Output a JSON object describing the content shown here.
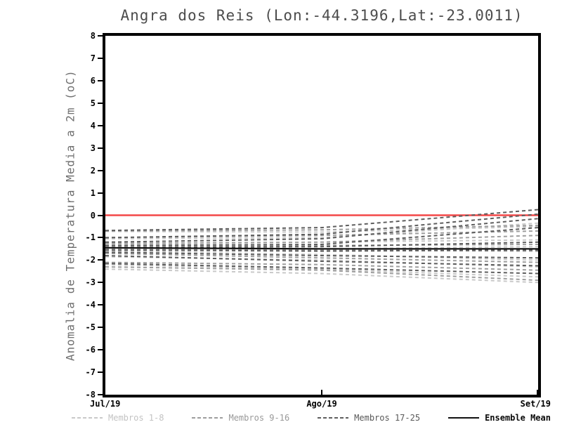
{
  "chart_data": {
    "type": "line",
    "title": "Angra dos Reis (Lon:-44.3196,Lat:-23.0011)",
    "ylabel": "Anomalia de Temperatura Media a 2m (oC)",
    "xlabel": "",
    "x_categories": [
      "Jul/19",
      "Ago/19",
      "Set/19"
    ],
    "ylim": [
      -8,
      8
    ],
    "ytick_step": 1,
    "grid": false,
    "legend_position": "bottom",
    "zero_line": {
      "value": 0,
      "color": "#f44848"
    },
    "series_groups": [
      {
        "name": "Membros 1-8",
        "color": "#c9c9c9",
        "style": "dashed",
        "members": [
          [
            -0.72,
            -0.75,
            -0.5
          ],
          [
            -1.05,
            -1.0,
            -0.35
          ],
          [
            -1.3,
            -1.2,
            -1.1
          ],
          [
            -1.45,
            -1.5,
            -1.4
          ],
          [
            -1.6,
            -1.75,
            -2.0
          ],
          [
            -1.85,
            -2.0,
            -2.3
          ],
          [
            -2.2,
            -2.4,
            -2.75
          ],
          [
            -2.4,
            -2.6,
            -3.0
          ]
        ]
      },
      {
        "name": "Membros 9-16",
        "color": "#9e9e9e",
        "style": "dashed",
        "members": [
          [
            -0.7,
            -0.65,
            -0.45
          ],
          [
            -1.0,
            -0.9,
            -0.7
          ],
          [
            -1.25,
            -1.2,
            -0.9
          ],
          [
            -1.4,
            -1.35,
            -1.3
          ],
          [
            -1.5,
            -1.55,
            -1.6
          ],
          [
            -1.7,
            -1.9,
            -2.1
          ],
          [
            -2.1,
            -2.2,
            -2.45
          ],
          [
            -2.3,
            -2.45,
            -2.9
          ]
        ]
      },
      {
        "name": "Membros 17-25",
        "color": "#5e5e5e",
        "style": "dashed",
        "members": [
          [
            -0.68,
            -0.55,
            0.25
          ],
          [
            -1.0,
            -0.85,
            0.05
          ],
          [
            -1.2,
            -1.05,
            -0.15
          ],
          [
            -1.35,
            -1.3,
            -0.55
          ],
          [
            -1.45,
            -1.4,
            -1.2
          ],
          [
            -1.55,
            -1.6,
            -1.55
          ],
          [
            -1.65,
            -1.8,
            -1.9
          ],
          [
            -1.8,
            -2.05,
            -2.25
          ],
          [
            -2.15,
            -2.35,
            -2.6
          ]
        ]
      }
    ],
    "ensemble_mean": {
      "name": "Ensemble Mean",
      "color": "#111111",
      "style": "solid",
      "values": [
        -1.45,
        -1.5,
        -1.5
      ]
    }
  }
}
